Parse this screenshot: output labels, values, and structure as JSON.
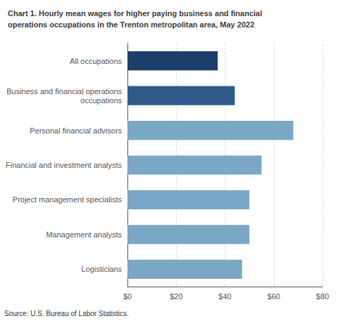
{
  "chart_data": {
    "type": "bar",
    "title": "Chart 1. Hourly mean wages for higher paying business and financial\noperations occupations in the Trenton metropolitan area, May 2022",
    "annotation": "Source: U.S. Bureau of Labor Statistics.",
    "orientation": "horizontal",
    "categories": [
      "Logisticians",
      "Management analysts",
      "Project management specialists",
      "Financial and investment analysts",
      "Personal financial advisors",
      "Business and financial operations\noccupations",
      "All occupations"
    ],
    "values": [
      47,
      50,
      50,
      55,
      68,
      44,
      37
    ],
    "colors": [
      "#7BA7C7",
      "#7BA7C7",
      "#7BA7C7",
      "#7BA7C7",
      "#7BA7C7",
      "#2E5B8A",
      "#1C3F6A"
    ],
    "xlim": [
      0,
      80
    ],
    "xticks": [
      {
        "value": 0,
        "label": "$0"
      },
      {
        "value": 20,
        "label": "$20"
      },
      {
        "value": 40,
        "label": "$40"
      },
      {
        "value": 60,
        "label": "$60"
      },
      {
        "value": 80,
        "label": "$80"
      }
    ],
    "grid": true
  }
}
